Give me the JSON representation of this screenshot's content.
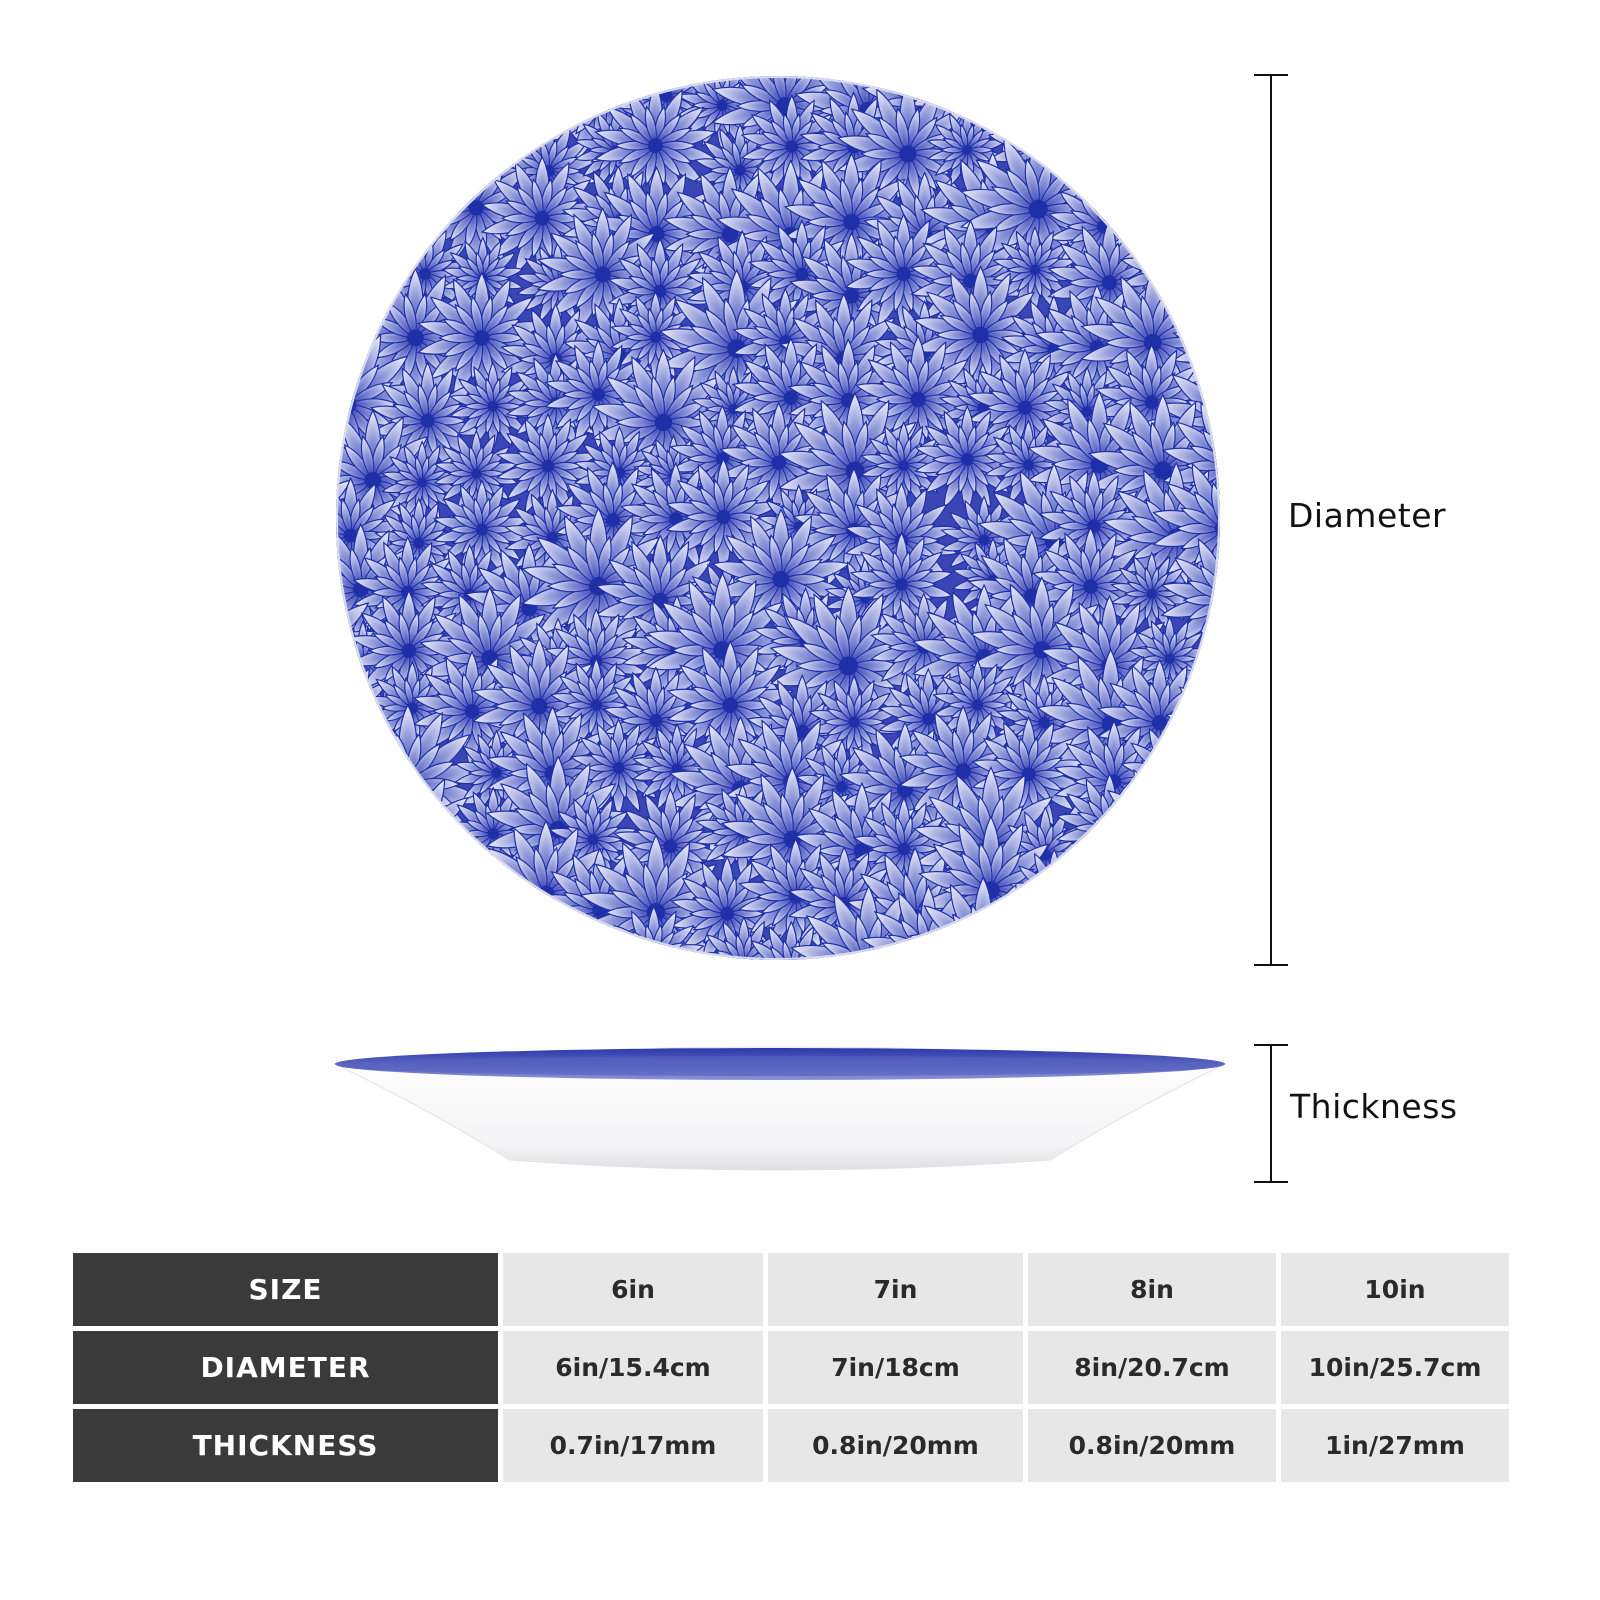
{
  "labels": {
    "diameter": "Diameter",
    "thickness": "Thickness"
  },
  "colors": {
    "pattern_blue": "#1f2fa8",
    "header_bg": "#3a3a3a",
    "cell_bg": "#e7e7e7"
  },
  "table": {
    "rows": [
      {
        "header": "SIZE",
        "cells": [
          "6in",
          "7in",
          "8in",
          "10in"
        ]
      },
      {
        "header": "DIAMETER",
        "cells": [
          "6in/15.4cm",
          "7in/18cm",
          "8in/20.7cm",
          "10in/25.7cm"
        ]
      },
      {
        "header": "THICKNESS",
        "cells": [
          "0.7in/17mm",
          "0.8in/20mm",
          "0.8in/20mm",
          "1in/27mm"
        ]
      }
    ]
  }
}
